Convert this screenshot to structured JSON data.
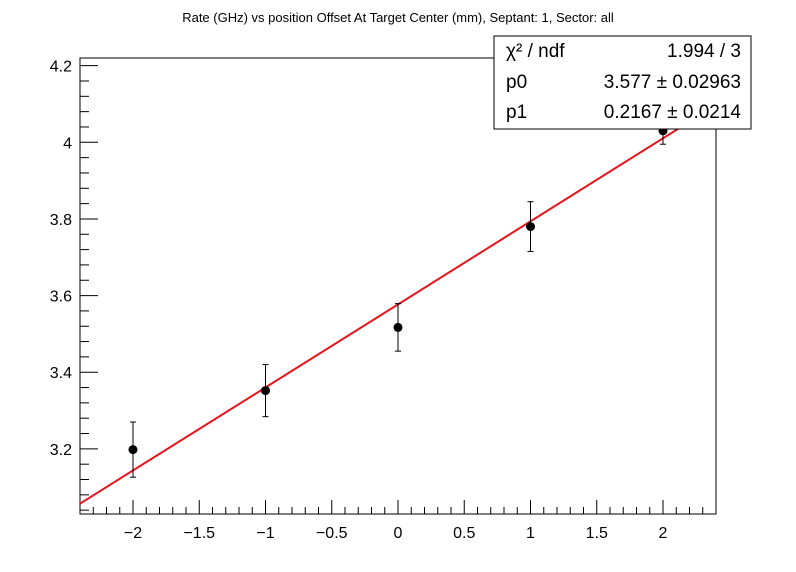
{
  "chart_data": {
    "type": "scatter",
    "title": "Rate (GHz) vs position Offset At Target Center (mm), Septant: 1, Sector: all",
    "xlabel": "",
    "ylabel": "",
    "xlim": [
      -2.4,
      2.4
    ],
    "ylim": [
      3.03,
      4.22
    ],
    "xticks": [
      -2,
      -1.5,
      -1,
      -0.5,
      0,
      0.5,
      1,
      1.5,
      2
    ],
    "xtick_labels": [
      "−2",
      "−1.5",
      "−1",
      "−0.5",
      "0",
      "0.5",
      "1",
      "1.5",
      "2"
    ],
    "yticks": [
      3.2,
      3.4,
      3.6,
      3.8,
      4.0,
      4.2
    ],
    "ytick_labels": [
      "3.2",
      "3.4",
      "3.6",
      "3.8",
      "4",
      "4.2"
    ],
    "points": [
      {
        "x": -2,
        "y": 3.198,
        "err": 0.072
      },
      {
        "x": -1,
        "y": 3.352,
        "err": 0.068
      },
      {
        "x": 0,
        "y": 3.517,
        "err": 0.062
      },
      {
        "x": 1,
        "y": 3.78,
        "err": 0.065
      },
      {
        "x": 2,
        "y": 4.03,
        "err": 0.035
      }
    ],
    "fit": {
      "type": "linear",
      "p0": 3.577,
      "p1": 0.2167,
      "color": "#e8141c"
    },
    "grid": false,
    "marker_color": "#000000"
  },
  "stats_box": {
    "rows": [
      {
        "label": "χ² / ndf",
        "value": "1.994 / 3"
      },
      {
        "label": "p0",
        "value": "3.577 ± 0.02963"
      },
      {
        "label": "p1",
        "value": "0.2167 ± 0.0214"
      }
    ]
  }
}
